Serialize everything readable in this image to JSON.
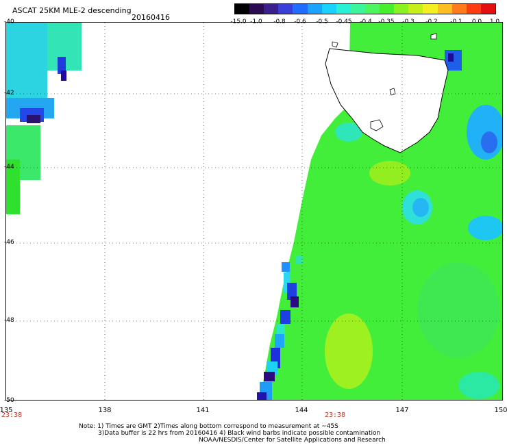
{
  "header": {
    "title": "ASCAT 25KM MLE-2 descending",
    "date": "20160416"
  },
  "colorbar": {
    "labels": [
      "-15.0",
      "-1.0",
      "-0.8",
      "-0.6",
      "-0.5",
      "-0.45",
      "-0.4",
      "-0.35",
      "-0.3",
      "-0.2",
      "-0.1",
      "0.0",
      "1.0"
    ],
    "colors": [
      "#000000",
      "#2a0a50",
      "#3b1f8c",
      "#3a3fd9",
      "#1f6cff",
      "#1aa4ff",
      "#19d1ff",
      "#27f0d7",
      "#3cf59a",
      "#4af55e",
      "#46ef2c",
      "#89f21f",
      "#c6ee18",
      "#f4ef1e",
      "#ffbe1f",
      "#ff7a1a",
      "#ff3b11",
      "#e30e0e"
    ]
  },
  "axes": {
    "lat_labels": [
      "-40",
      "-42",
      "-44",
      "-46",
      "-48",
      "-50"
    ],
    "lon_labels": [
      "135",
      "138",
      "141",
      "144",
      "147",
      "150"
    ],
    "lat_range": [
      -50,
      -40
    ],
    "lon_range": [
      135,
      150
    ],
    "grid": "dotted"
  },
  "time_labels": [
    "23:38",
    "23:38"
  ],
  "notes": [
    "Note: 1) Times are GMT 2)Times along bottom correspond to measurement at ~45S",
    "3)Data buffer is 22 hrs from 20160416 4) Black wind barbs indicate possible contamination",
    "NOAA/NESDIS/Center for Satellite Applications and Research"
  ]
}
